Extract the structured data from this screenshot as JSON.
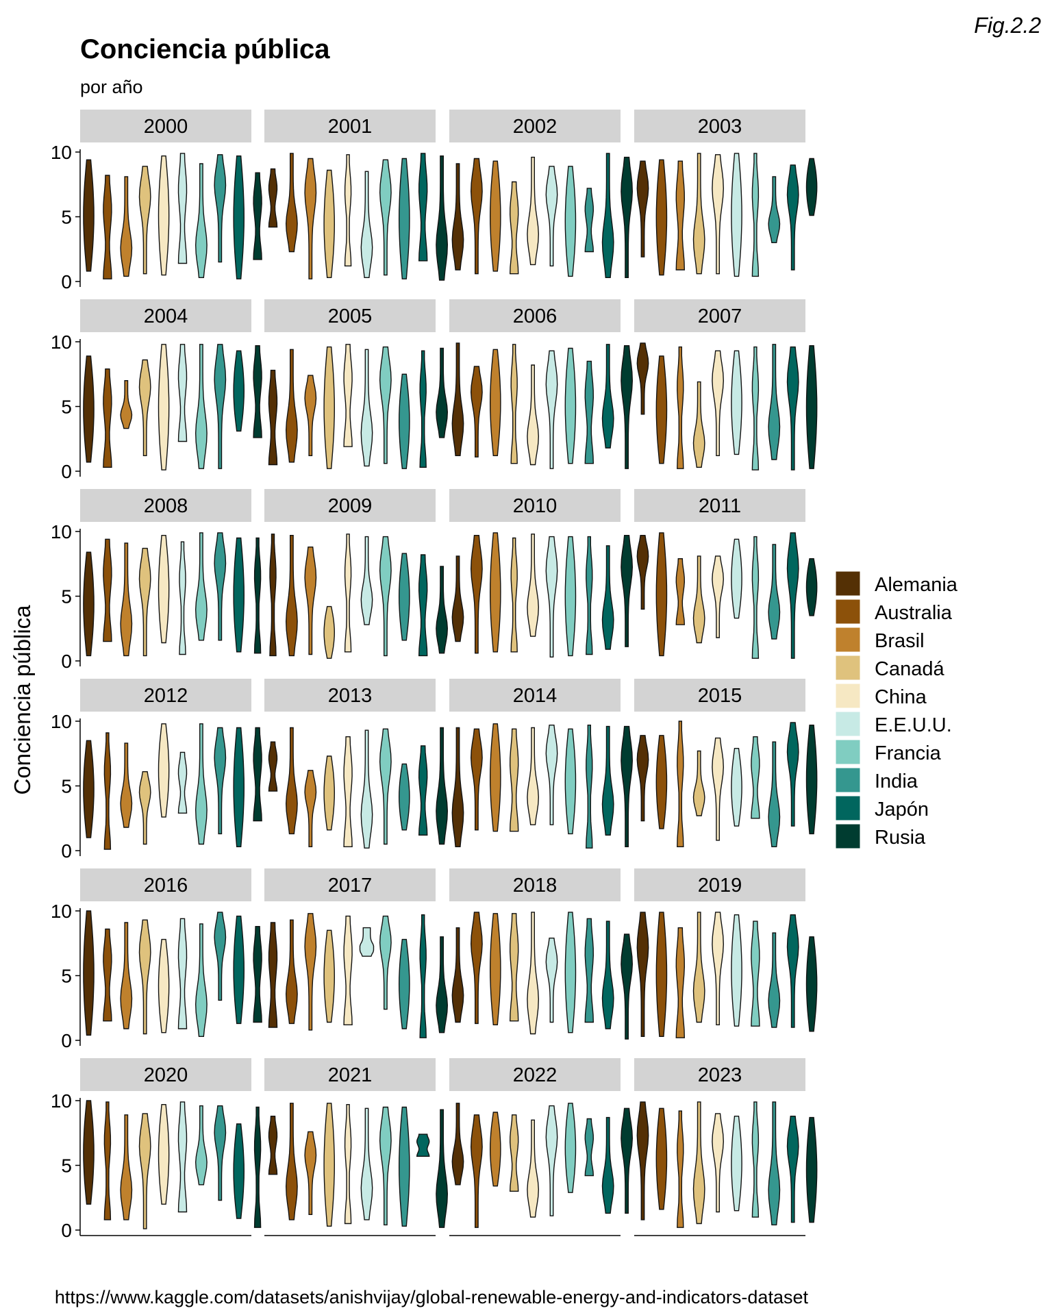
{
  "figure_label": "Fig.2.2",
  "source_caption": "https://www.kaggle.com/datasets/anishvijay/global-renewable-energy-and-indicators-dataset",
  "chart_data": {
    "type": "violin",
    "title": "Conciencia pública",
    "subtitle": "por año",
    "ylabel": "Conciencia pública",
    "xlabel": "",
    "ylim": [
      0,
      10
    ],
    "yticks": [
      0,
      5,
      10
    ],
    "facets": [
      "2000",
      "2001",
      "2002",
      "2003",
      "2004",
      "2005",
      "2006",
      "2007",
      "2008",
      "2009",
      "2010",
      "2011",
      "2012",
      "2013",
      "2014",
      "2015",
      "2016",
      "2017",
      "2018",
      "2019",
      "2020",
      "2021",
      "2022",
      "2023"
    ],
    "facet_columns": 4,
    "legend_position": "right",
    "series": [
      {
        "name": "Alemania",
        "color": "#543005"
      },
      {
        "name": "Australia",
        "color": "#8c510a"
      },
      {
        "name": "Brasil",
        "color": "#bf812d"
      },
      {
        "name": "Canadá",
        "color": "#dfc27d"
      },
      {
        "name": "China",
        "color": "#f6e8c3"
      },
      {
        "name": "E.E.U.U.",
        "color": "#c7eae5"
      },
      {
        "name": "Francia",
        "color": "#80cdc1"
      },
      {
        "name": "India",
        "color": "#35978f"
      },
      {
        "name": "Japón",
        "color": "#01665e"
      },
      {
        "name": "Rusia",
        "color": "#003c30"
      }
    ],
    "ranges": {
      "2000": [
        [
          0.8,
          9.4
        ],
        [
          0.2,
          8.2
        ],
        [
          0.4,
          8.1
        ],
        [
          0.6,
          8.9
        ],
        [
          0.5,
          9.7
        ],
        [
          1.4,
          9.9
        ],
        [
          0.3,
          9.1
        ],
        [
          1.5,
          9.8
        ],
        [
          0.2,
          9.7
        ],
        [
          1.7,
          8.4
        ]
      ],
      "2001": [
        [
          4.2,
          8.7
        ],
        [
          2.3,
          9.9
        ],
        [
          0.2,
          9.5
        ],
        [
          0.3,
          8.6
        ],
        [
          1.2,
          9.8
        ],
        [
          0.3,
          8.5
        ],
        [
          0.5,
          9.4
        ],
        [
          0.2,
          9.5
        ],
        [
          1.6,
          9.9
        ],
        [
          0.1,
          9.7
        ]
      ],
      "2002": [
        [
          0.9,
          9.1
        ],
        [
          0.6,
          9.5
        ],
        [
          0.8,
          9.3
        ],
        [
          0.6,
          7.7
        ],
        [
          1.3,
          9.6
        ],
        [
          1.2,
          8.9
        ],
        [
          0.4,
          8.9
        ],
        [
          2.3,
          7.2
        ],
        [
          0.3,
          9.9
        ],
        [
          0.3,
          9.6
        ]
      ],
      "2003": [
        [
          1.9,
          9.3
        ],
        [
          0.5,
          9.4
        ],
        [
          0.9,
          9.3
        ],
        [
          0.6,
          9.9
        ],
        [
          0.6,
          9.8
        ],
        [
          0.4,
          9.9
        ],
        [
          0.4,
          9.9
        ],
        [
          3.0,
          8.1
        ],
        [
          0.9,
          9.0
        ],
        [
          5.1,
          9.5
        ]
      ],
      "2004": [
        [
          0.7,
          8.9
        ],
        [
          0.3,
          7.9
        ],
        [
          3.3,
          7.0
        ],
        [
          1.2,
          8.6
        ],
        [
          0.1,
          9.8
        ],
        [
          2.3,
          9.8
        ],
        [
          0.2,
          9.8
        ],
        [
          0.2,
          9.8
        ],
        [
          3.1,
          9.3
        ],
        [
          2.6,
          9.7
        ]
      ],
      "2005": [
        [
          0.5,
          7.8
        ],
        [
          0.7,
          9.4
        ],
        [
          1.2,
          7.4
        ],
        [
          0.2,
          9.6
        ],
        [
          1.9,
          9.8
        ],
        [
          0.4,
          9.4
        ],
        [
          0.6,
          9.6
        ],
        [
          0.2,
          7.5
        ],
        [
          0.3,
          9.3
        ],
        [
          2.6,
          9.5
        ]
      ],
      "2006": [
        [
          1.2,
          9.9
        ],
        [
          1.1,
          8.1
        ],
        [
          1.2,
          9.4
        ],
        [
          0.6,
          9.8
        ],
        [
          0.5,
          8.2
        ],
        [
          0.2,
          9.3
        ],
        [
          0.6,
          9.5
        ],
        [
          0.6,
          8.5
        ],
        [
          1.8,
          9.8
        ],
        [
          0.2,
          9.7
        ]
      ],
      "2007": [
        [
          4.4,
          9.9
        ],
        [
          0.6,
          8.9
        ],
        [
          0.2,
          9.6
        ],
        [
          0.3,
          6.9
        ],
        [
          1.2,
          9.3
        ],
        [
          1.3,
          9.3
        ],
        [
          0.1,
          9.6
        ],
        [
          0.9,
          9.8
        ],
        [
          0.1,
          9.6
        ],
        [
          0.2,
          9.7
        ]
      ],
      "2008": [
        [
          0.4,
          8.4
        ],
        [
          1.5,
          9.4
        ],
        [
          0.4,
          9.1
        ],
        [
          0.4,
          8.7
        ],
        [
          1.4,
          9.7
        ],
        [
          0.5,
          9.2
        ],
        [
          1.6,
          9.9
        ],
        [
          1.6,
          9.9
        ],
        [
          0.7,
          9.5
        ],
        [
          0.6,
          9.5
        ]
      ],
      "2009": [
        [
          0.4,
          9.8
        ],
        [
          0.4,
          9.7
        ],
        [
          0.5,
          8.8
        ],
        [
          0.2,
          4.2
        ],
        [
          0.7,
          9.8
        ],
        [
          2.8,
          9.6
        ],
        [
          0.4,
          9.6
        ],
        [
          1.6,
          8.3
        ],
        [
          0.4,
          8.2
        ],
        [
          0.6,
          7.3
        ]
      ],
      "2010": [
        [
          1.5,
          8.1
        ],
        [
          0.6,
          9.7
        ],
        [
          0.7,
          9.9
        ],
        [
          0.7,
          9.5
        ],
        [
          1.9,
          9.8
        ],
        [
          0.3,
          9.6
        ],
        [
          0.4,
          9.6
        ],
        [
          0.5,
          9.6
        ],
        [
          0.9,
          8.9
        ],
        [
          1.1,
          9.7
        ]
      ],
      "2011": [
        [
          4.0,
          9.7
        ],
        [
          0.4,
          9.9
        ],
        [
          2.8,
          7.9
        ],
        [
          1.4,
          8.1
        ],
        [
          1.8,
          8.1
        ],
        [
          3.3,
          9.4
        ],
        [
          0.2,
          9.6
        ],
        [
          1.7,
          9.0
        ],
        [
          0.2,
          9.9
        ],
        [
          3.5,
          7.9
        ]
      ],
      "2012": [
        [
          1.0,
          8.5
        ],
        [
          0.1,
          9.1
        ],
        [
          1.8,
          8.3
        ],
        [
          0.5,
          6.1
        ],
        [
          2.6,
          9.8
        ],
        [
          2.9,
          7.6
        ],
        [
          0.5,
          9.8
        ],
        [
          1.3,
          9.5
        ],
        [
          0.3,
          9.5
        ],
        [
          2.3,
          9.5
        ]
      ],
      "2013": [
        [
          4.6,
          8.4
        ],
        [
          1.3,
          9.5
        ],
        [
          0.3,
          6.2
        ],
        [
          1.6,
          7.3
        ],
        [
          0.3,
          8.8
        ],
        [
          0.2,
          9.3
        ],
        [
          0.5,
          9.4
        ],
        [
          1.6,
          6.7
        ],
        [
          1.2,
          8.1
        ],
        [
          0.5,
          9.5
        ]
      ],
      "2014": [
        [
          0.3,
          9.5
        ],
        [
          1.6,
          9.4
        ],
        [
          1.5,
          9.8
        ],
        [
          1.5,
          9.4
        ],
        [
          2.0,
          9.5
        ],
        [
          2.0,
          9.7
        ],
        [
          1.3,
          9.4
        ],
        [
          0.2,
          9.7
        ],
        [
          1.2,
          9.6
        ],
        [
          0.3,
          9.6
        ]
      ],
      "2015": [
        [
          2.3,
          8.9
        ],
        [
          1.7,
          8.9
        ],
        [
          0.3,
          10.0
        ],
        [
          2.7,
          7.7
        ],
        [
          0.8,
          8.7
        ],
        [
          1.9,
          7.9
        ],
        [
          2.5,
          8.8
        ],
        [
          0.3,
          8.4
        ],
        [
          1.9,
          9.9
        ],
        [
          1.3,
          9.7
        ]
      ],
      "2016": [
        [
          0.4,
          10.0
        ],
        [
          1.5,
          8.6
        ],
        [
          0.9,
          9.1
        ],
        [
          0.5,
          9.3
        ],
        [
          0.6,
          7.8
        ],
        [
          0.9,
          9.4
        ],
        [
          0.3,
          9.0
        ],
        [
          3.1,
          9.9
        ],
        [
          1.3,
          9.6
        ],
        [
          1.4,
          8.8
        ]
      ],
      "2017": [
        [
          1.0,
          9.1
        ],
        [
          1.3,
          9.3
        ],
        [
          0.8,
          9.8
        ],
        [
          1.4,
          8.5
        ],
        [
          1.2,
          9.6
        ],
        [
          6.5,
          8.7
        ],
        [
          2.4,
          9.6
        ],
        [
          0.9,
          7.8
        ],
        [
          0.2,
          9.7
        ],
        [
          0.6,
          8.0
        ]
      ],
      "2018": [
        [
          1.4,
          8.7
        ],
        [
          1.3,
          9.9
        ],
        [
          1.2,
          9.8
        ],
        [
          1.5,
          9.8
        ],
        [
          0.5,
          9.9
        ],
        [
          1.4,
          7.9
        ],
        [
          0.6,
          9.9
        ],
        [
          1.4,
          9.4
        ],
        [
          0.9,
          9.2
        ],
        [
          0.1,
          8.2
        ]
      ],
      "2019": [
        [
          0.3,
          9.9
        ],
        [
          0.3,
          9.9
        ],
        [
          0.2,
          8.7
        ],
        [
          1.4,
          9.9
        ],
        [
          1.2,
          9.9
        ],
        [
          1.1,
          9.7
        ],
        [
          1.1,
          9.2
        ],
        [
          1.0,
          8.3
        ],
        [
          1.0,
          9.7
        ],
        [
          0.7,
          8.0
        ]
      ],
      "2020": [
        [
          2.0,
          10.0
        ],
        [
          0.8,
          9.9
        ],
        [
          0.8,
          8.9
        ],
        [
          0.1,
          9.0
        ],
        [
          2.0,
          9.7
        ],
        [
          1.4,
          9.9
        ],
        [
          3.5,
          9.6
        ],
        [
          2.3,
          9.6
        ],
        [
          0.9,
          8.2
        ],
        [
          0.2,
          9.5
        ]
      ],
      "2021": [
        [
          4.3,
          8.8
        ],
        [
          0.8,
          9.8
        ],
        [
          1.2,
          7.6
        ],
        [
          0.3,
          9.8
        ],
        [
          0.5,
          9.7
        ],
        [
          0.8,
          9.4
        ],
        [
          0.4,
          9.5
        ],
        [
          0.3,
          9.5
        ],
        [
          5.7,
          7.4
        ],
        [
          0.2,
          9.3
        ]
      ],
      "2022": [
        [
          3.5,
          9.8
        ],
        [
          0.2,
          8.9
        ],
        [
          3.4,
          9.1
        ],
        [
          3.0,
          8.9
        ],
        [
          1.0,
          8.5
        ],
        [
          1.1,
          9.6
        ],
        [
          2.9,
          9.8
        ],
        [
          4.2,
          8.6
        ],
        [
          1.3,
          8.7
        ],
        [
          1.3,
          9.4
        ]
      ],
      "2023": [
        [
          0.8,
          9.9
        ],
        [
          1.6,
          9.4
        ],
        [
          0.2,
          9.2
        ],
        [
          0.5,
          9.9
        ],
        [
          1.4,
          9.0
        ],
        [
          1.5,
          8.8
        ],
        [
          1.0,
          9.9
        ],
        [
          0.4,
          9.9
        ],
        [
          0.6,
          8.8
        ],
        [
          0.6,
          8.7
        ]
      ]
    }
  }
}
